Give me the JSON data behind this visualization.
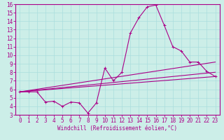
{
  "xlabel": "Windchill (Refroidissement éolien,°C)",
  "background_color": "#cceee8",
  "grid_color": "#aadddd",
  "line_color": "#aa0088",
  "spine_color": "#aa0088",
  "xlim": [
    -0.5,
    23.5
  ],
  "ylim": [
    3,
    16
  ],
  "xticks": [
    0,
    1,
    2,
    3,
    4,
    5,
    6,
    7,
    8,
    9,
    10,
    11,
    12,
    13,
    14,
    15,
    16,
    17,
    18,
    19,
    20,
    21,
    22,
    23
  ],
  "yticks": [
    3,
    4,
    5,
    6,
    7,
    8,
    9,
    10,
    11,
    12,
    13,
    14,
    15,
    16
  ],
  "series1_x": [
    0,
    1,
    2,
    3,
    4,
    5,
    6,
    7,
    8,
    9,
    10,
    11,
    12,
    13,
    14,
    15,
    16,
    17,
    18,
    19,
    20,
    21,
    22,
    23
  ],
  "series1_y": [
    5.7,
    5.7,
    5.7,
    4.5,
    4.6,
    4.0,
    4.5,
    4.4,
    3.2,
    4.4,
    8.5,
    7.0,
    8.0,
    12.6,
    14.4,
    15.7,
    15.9,
    13.5,
    11.0,
    10.5,
    9.2,
    9.2,
    8.1,
    7.5
  ],
  "series2_x": [
    0,
    23
  ],
  "series2_y": [
    5.7,
    7.5
  ],
  "series3_x": [
    0,
    23
  ],
  "series3_y": [
    5.7,
    8.0
  ],
  "series4_x": [
    0,
    23
  ],
  "series4_y": [
    5.7,
    9.2
  ],
  "tick_fontsize": 5.5,
  "xlabel_fontsize": 5.5
}
